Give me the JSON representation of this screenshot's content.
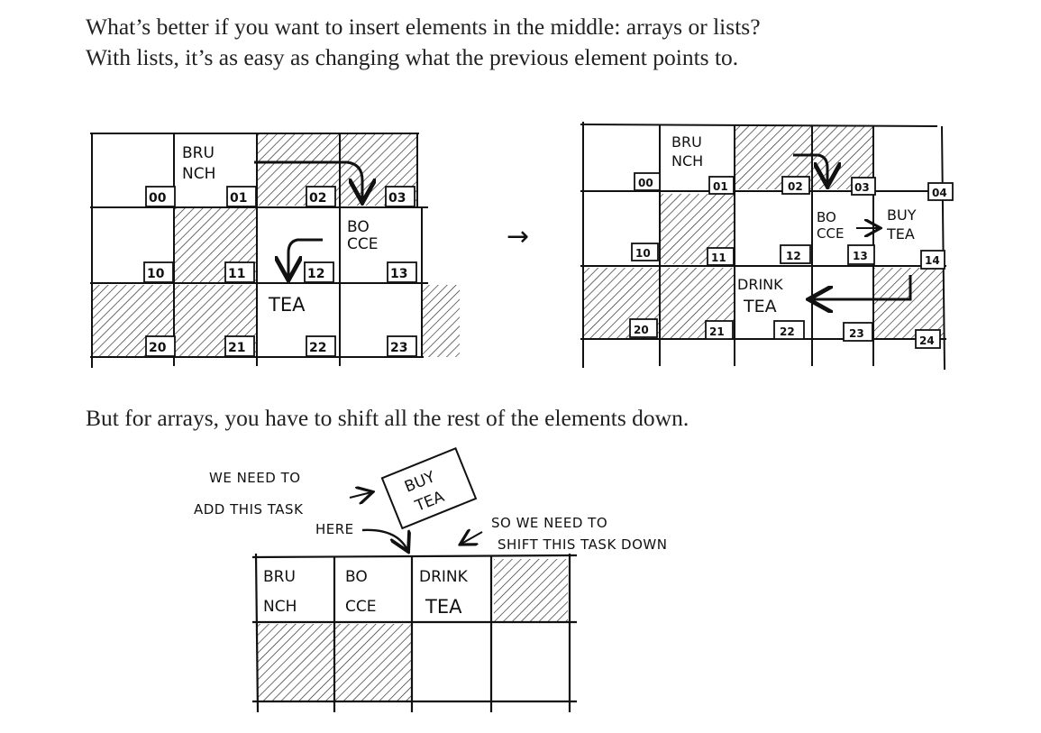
{
  "text": {
    "paragraph1": "What’s better if you want to insert elements in the middle: arrays or lists? With lists, it’s as easy as changing what the previous element points to.",
    "paragraph2": "But for arrays, you have to shift all the rest of the elements down."
  },
  "list_before": {
    "addresses": [
      "00",
      "01",
      "02",
      "03",
      "10",
      "11",
      "12",
      "13",
      "20",
      "21",
      "22",
      "23"
    ],
    "items": {
      "brunch": [
        "BRU",
        "NCH"
      ],
      "bocce": [
        "BO",
        "CCE"
      ],
      "tea": "TEA"
    }
  },
  "transition_arrow": "→",
  "list_after": {
    "addresses": [
      "00",
      "01",
      "02",
      "03",
      "04",
      "10",
      "11",
      "12",
      "13",
      "14",
      "20",
      "21",
      "22",
      "23",
      "24"
    ],
    "items": {
      "brunch": [
        "BRU",
        "NCH"
      ],
      "bocce": [
        "BO",
        "CCE"
      ],
      "buy_tea": [
        "BUY",
        "TEA"
      ],
      "drink_tea": [
        "DRINK",
        "TEA"
      ]
    }
  },
  "array_section": {
    "note_add": [
      "WE NEED TO",
      "ADD THIS TASK",
      "HERE"
    ],
    "new_task": [
      "BUY",
      "TEA"
    ],
    "note_shift": [
      "SO WE NEED TO",
      "SHIFT THIS TASK DOWN"
    ],
    "cells": [
      [
        "BRU",
        "NCH"
      ],
      [
        "BO",
        "CCE"
      ],
      [
        "DRINK",
        "TEA"
      ]
    ]
  }
}
